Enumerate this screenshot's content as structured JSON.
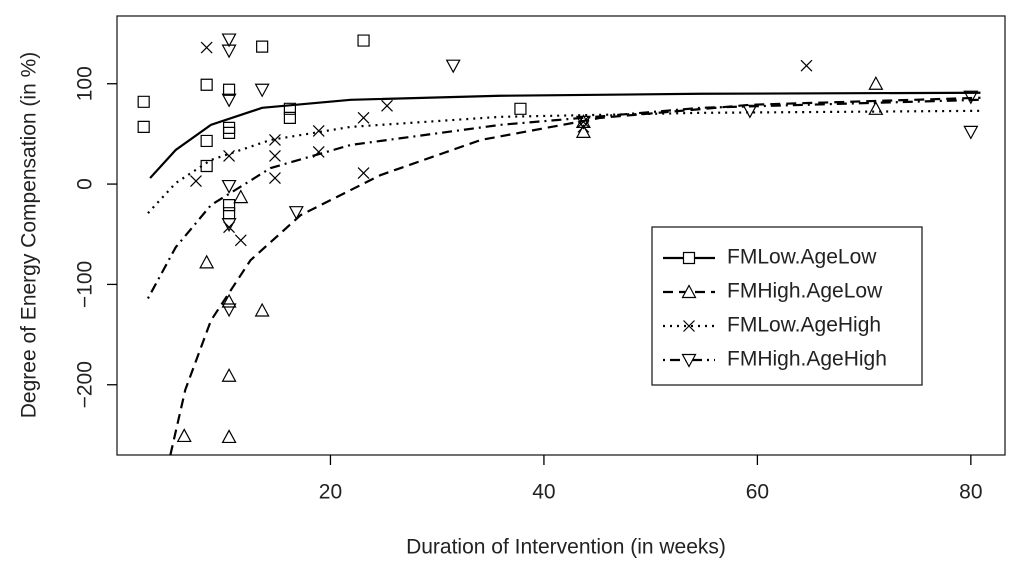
{
  "chart_data": {
    "type": "scatter",
    "x_label": "Duration of Intervention (in weeks)",
    "y_label": "Degree of Energy Compensation (in %)",
    "xlim": [
      0,
      83.2
    ],
    "ylim": [
      -270,
      167.5
    ],
    "xticks": [
      20,
      40,
      60,
      80
    ],
    "yticks": [
      {
        "value": -200,
        "label": "−200"
      },
      {
        "value": -100,
        "label": "−100"
      },
      0,
      100
    ],
    "color": "#000000",
    "series": [
      {
        "name": "FMLow.AgeLow",
        "marker": "square",
        "line": "solid",
        "x": [
          2.5,
          2.5,
          8.4,
          8.4,
          8.4,
          10.5,
          10.5,
          10.5,
          10.5,
          10.5,
          13.6,
          16.2,
          16.2,
          23.1,
          37.8
        ],
        "values": [
          82,
          57,
          99,
          43,
          18,
          94,
          56,
          51,
          -21,
          -29,
          137,
          75,
          66,
          143,
          75
        ],
        "curve_x": [
          3.1,
          5.5,
          8.8,
          13.6,
          21.9,
          35.9,
          54.7,
          80.9
        ],
        "curve_values": [
          6,
          34,
          59,
          76,
          84,
          88,
          90,
          91
        ]
      },
      {
        "name": "FMHigh.AgeLow",
        "marker": "triangle",
        "line": "dashed",
        "x": [
          6.3,
          8.4,
          10.5,
          10.5,
          10.5,
          11.6,
          13.6,
          43.7,
          43.7,
          71.1,
          71.1
        ],
        "values": [
          -251,
          -78,
          -117,
          -191,
          -252,
          -13,
          -126,
          62,
          52,
          100,
          75
        ],
        "curve_x": [
          5,
          6.4,
          8.8,
          12.5,
          17.2,
          24.7,
          34.1,
          45.3,
          59.3,
          80.9
        ],
        "curve_values": [
          -270,
          -205,
          -136,
          -76,
          -31,
          9,
          44,
          66,
          79,
          86
        ]
      },
      {
        "name": "FMLow.AgeHigh",
        "marker": "cross",
        "line": "dotted",
        "x": [
          8.4,
          7.4,
          10.5,
          10.5,
          11.6,
          14.8,
          14.8,
          14.8,
          18.9,
          18.9,
          23.1,
          23.1,
          25.3,
          43.7,
          43.7,
          64.6
        ],
        "values": [
          136,
          3,
          28,
          -43,
          -56,
          44,
          28,
          6,
          53,
          32,
          66,
          11,
          78,
          62,
          57,
          118
        ],
        "curve_x": [
          2.9,
          5.5,
          8.8,
          14.4,
          21.9,
          35.9,
          54.7,
          80.9
        ],
        "curve_values": [
          -29,
          1,
          24,
          44,
          57,
          67,
          71,
          73
        ]
      },
      {
        "name": "FMHigh.AgeHigh",
        "marker": "triangle-down",
        "line": "dotdash",
        "x": [
          10.5,
          10.5,
          10.5,
          10.5,
          10.5,
          10.5,
          13.6,
          16.8,
          31.5,
          43.7,
          59.3,
          80,
          80
        ],
        "values": [
          144,
          133,
          84,
          -2,
          -40,
          -125,
          94,
          -28,
          118,
          62,
          73,
          87,
          52
        ],
        "curve_x": [
          2.9,
          5.5,
          8.8,
          14.4,
          21.9,
          35.9,
          54.7,
          80.9
        ],
        "curve_values": [
          -114,
          -63,
          -21,
          16,
          39,
          59,
          76,
          84
        ]
      }
    ]
  }
}
